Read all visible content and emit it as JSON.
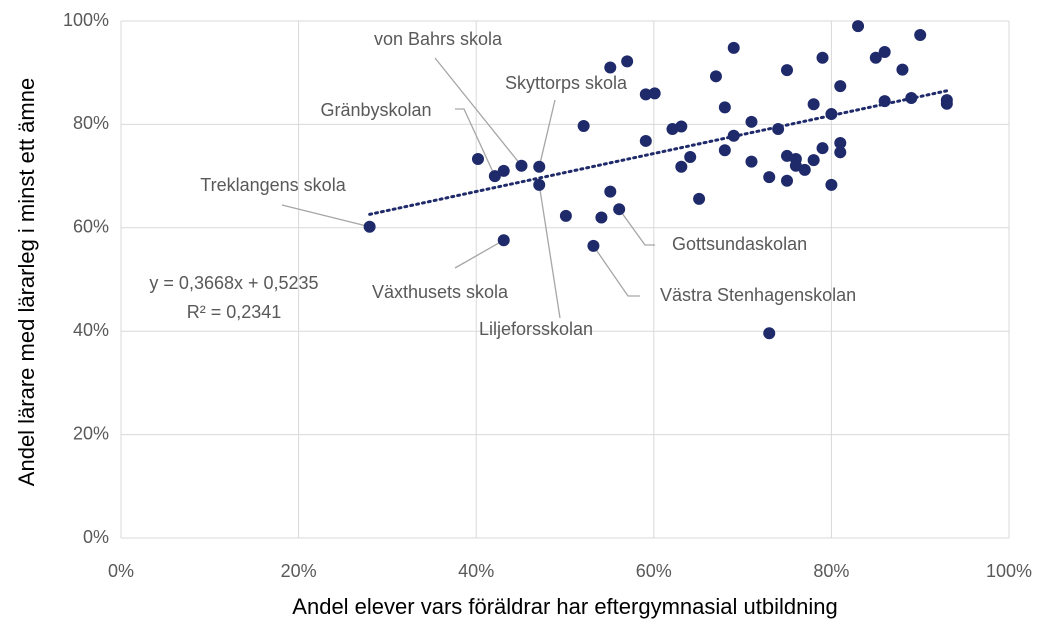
{
  "chart_data": {
    "type": "scatter",
    "x_label": "Andel elever vars föräldrar har eftergymnasial utbildning",
    "y_label": "Andel lärare med lärarleg i minst ett ämne",
    "xlim": [
      0,
      100
    ],
    "ylim": [
      0,
      100
    ],
    "xticks": [
      {
        "value": 0,
        "label": "0%"
      },
      {
        "value": 20,
        "label": "20%"
      },
      {
        "value": 40,
        "label": "40%"
      },
      {
        "value": 60,
        "label": "60%"
      },
      {
        "value": 80,
        "label": "80%"
      },
      {
        "value": 100,
        "label": "100%"
      }
    ],
    "yticks": [
      {
        "value": 0,
        "label": "0%"
      },
      {
        "value": 20,
        "label": "20%"
      },
      {
        "value": 40,
        "label": "40%"
      },
      {
        "value": 60,
        "label": "60%"
      },
      {
        "value": 80,
        "label": "80%"
      },
      {
        "value": 100,
        "label": "100%"
      }
    ],
    "grid": true,
    "color": "#1f2a6b",
    "x": [
      28.0,
      42.1,
      43.1,
      45.1,
      47.1,
      47.1,
      53.2,
      56.1,
      40.2,
      43.1,
      50.1,
      52.1,
      54.1,
      55.1,
      55.1,
      57.0,
      59.1,
      59.1,
      60.1,
      62.1,
      63.1,
      63.1,
      64.1,
      65.1,
      67.0,
      68.0,
      68.0,
      69.0,
      69.0,
      71.0,
      71.0,
      73.0,
      74.0,
      75.0,
      75.0,
      75.0,
      76.0,
      76.0,
      77.0,
      78.0,
      78.0,
      79.0,
      79.0,
      80.0,
      80.0,
      81.0,
      81.0,
      81.0,
      83.0,
      85.0,
      86.0,
      86.0,
      88.0,
      89.0,
      90.0,
      93.0,
      93.0,
      73.0
    ],
    "values": [
      60.2,
      70.0,
      57.6,
      72.0,
      71.8,
      68.3,
      56.5,
      63.6,
      73.3,
      71.0,
      62.3,
      79.7,
      62.0,
      91.0,
      67.0,
      92.2,
      85.8,
      76.8,
      86.0,
      79.1,
      79.6,
      71.8,
      73.7,
      65.6,
      89.3,
      83.3,
      75.0,
      94.8,
      77.8,
      80.5,
      72.8,
      69.8,
      79.1,
      90.5,
      73.9,
      69.1,
      73.3,
      72.0,
      71.2,
      83.9,
      73.1,
      92.9,
      75.4,
      82.0,
      68.3,
      87.4,
      76.4,
      74.6,
      99.0,
      92.9,
      94.0,
      84.5,
      90.6,
      85.1,
      97.3,
      84.7,
      84.0,
      39.6
    ],
    "point_labels": [
      "Treklangens skola",
      "Gränbyskolan",
      "Växthusets skola",
      "von Bahrs skola",
      "Skyttorps skola",
      "Liljeforsskolan",
      "Västra Stenhagenskolan",
      "Gottsundaskolan",
      null,
      null,
      null,
      null,
      null,
      null,
      null,
      null,
      null,
      null,
      null,
      null,
      null,
      null,
      null,
      null,
      null,
      null,
      null,
      null,
      null,
      null,
      null,
      null,
      null,
      null,
      null,
      null,
      null,
      null,
      null,
      null,
      null,
      null,
      null,
      null,
      null,
      null,
      null,
      null,
      null,
      null,
      null,
      null,
      null,
      null,
      null,
      null,
      null,
      null
    ],
    "trendline": {
      "x": [
        28,
        93
      ],
      "values": [
        62.6,
        86.5
      ]
    },
    "annotations": [
      "y = 0,3668x + 0,5235",
      "R² = 0,2341"
    ]
  }
}
